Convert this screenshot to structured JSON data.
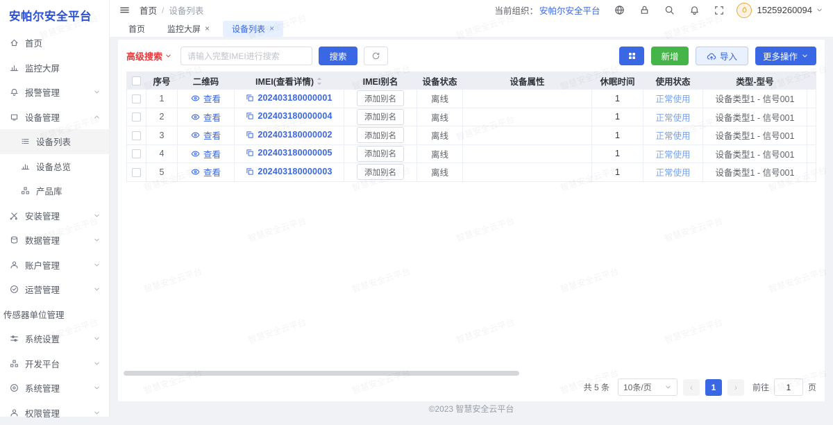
{
  "app": {
    "logo": "安帕尔安全平台",
    "footer": "©2023 智慧安全云平台",
    "watermark": "智慧安全云平台"
  },
  "header": {
    "breadcrumb": {
      "home": "首页",
      "separator": "/",
      "current": "设备列表"
    },
    "org_label": "当前组织：",
    "org_name": "安帕尔安全平台",
    "username": "15259260094"
  },
  "tabs": [
    {
      "name": "home",
      "label": "首页",
      "closable": false,
      "active": false
    },
    {
      "name": "monitor-screen",
      "label": "监控大屏",
      "closable": true,
      "active": false
    },
    {
      "name": "device-list",
      "label": "设备列表",
      "closable": true,
      "active": true
    }
  ],
  "sidebar": {
    "items": [
      {
        "name": "home",
        "label": "首页",
        "icon": "home-icon",
        "sub": false,
        "chevron": null,
        "active": false
      },
      {
        "name": "monitor-screen",
        "label": "监控大屏",
        "icon": "monitor-icon",
        "sub": false,
        "chevron": null,
        "active": false
      },
      {
        "name": "alarm-management",
        "label": "报警管理",
        "icon": "alarm-icon",
        "sub": false,
        "chevron": "down",
        "active": false
      },
      {
        "name": "device-management",
        "label": "设备管理",
        "icon": "device-icon",
        "sub": false,
        "chevron": "up",
        "active": false
      },
      {
        "name": "device-list",
        "label": "设备列表",
        "icon": "list-icon",
        "sub": true,
        "chevron": null,
        "active": true
      },
      {
        "name": "device-overview",
        "label": "设备总览",
        "icon": "overview-icon",
        "sub": true,
        "chevron": null,
        "active": false
      },
      {
        "name": "product-library",
        "label": "产品库",
        "icon": "product-icon",
        "sub": true,
        "chevron": null,
        "active": false
      },
      {
        "name": "install-management",
        "label": "安装管理",
        "icon": "install-icon",
        "sub": false,
        "chevron": "down",
        "active": false
      },
      {
        "name": "data-management",
        "label": "数据管理",
        "icon": "data-icon",
        "sub": false,
        "chevron": "down",
        "active": false
      },
      {
        "name": "account-management",
        "label": "账户管理",
        "icon": "account-icon",
        "sub": false,
        "chevron": "down",
        "active": false
      },
      {
        "name": "operation-management",
        "label": "运营管理",
        "icon": "operation-icon",
        "sub": false,
        "chevron": "down",
        "active": false
      },
      {
        "name": "sensor-unit-management",
        "label": "传感器单位管理",
        "icon": null,
        "sub": false,
        "chevron": null,
        "active": false
      },
      {
        "name": "system-settings",
        "label": "系统设置",
        "icon": "settings-icon",
        "sub": false,
        "chevron": "down",
        "active": false
      },
      {
        "name": "dev-platform",
        "label": "开发平台",
        "icon": "dev-icon",
        "sub": false,
        "chevron": "down",
        "active": false
      },
      {
        "name": "system-management",
        "label": "系统管理",
        "icon": "system-icon",
        "sub": false,
        "chevron": "down",
        "active": false
      },
      {
        "name": "permission-management",
        "label": "权限管理",
        "icon": "permission-icon",
        "sub": false,
        "chevron": "down",
        "active": false
      }
    ]
  },
  "toolbar": {
    "advanced_search": "高级搜索",
    "search_placeholder": "请输入完整IMEI进行搜索",
    "search_button": "搜索",
    "add_button": "新增",
    "import_button": "导入",
    "more_button": "更多操作"
  },
  "table": {
    "columns": [
      "序号",
      "二维码",
      "IMEI(查看详情)",
      "IMEI别名",
      "设备状态",
      "设备属性",
      "休眠时间",
      "使用状态",
      "类型-型号"
    ],
    "view_label": "查看",
    "alias_button": "添加别名",
    "rows": [
      {
        "index": "1",
        "imei": "202403180000001",
        "status": "离线",
        "attr": "",
        "sleep": "1",
        "usage": "正常使用",
        "model": "设备类型1 - 信号001"
      },
      {
        "index": "2",
        "imei": "202403180000004",
        "status": "离线",
        "attr": "",
        "sleep": "1",
        "usage": "正常使用",
        "model": "设备类型1 - 信号001"
      },
      {
        "index": "3",
        "imei": "202403180000002",
        "status": "离线",
        "attr": "",
        "sleep": "1",
        "usage": "正常使用",
        "model": "设备类型1 - 信号001"
      },
      {
        "index": "4",
        "imei": "202403180000005",
        "status": "离线",
        "attr": "",
        "sleep": "1",
        "usage": "正常使用",
        "model": "设备类型1 - 信号001"
      },
      {
        "index": "5",
        "imei": "202403180000003",
        "status": "离线",
        "attr": "",
        "sleep": "1",
        "usage": "正常使用",
        "model": "设备类型1 - 信号001"
      }
    ]
  },
  "pagination": {
    "total": "共 5 条",
    "page_size": "10条/页",
    "current_page": "1",
    "goto_label": "前往",
    "goto_value": "1",
    "page_unit": "页"
  },
  "colors": {
    "primary_blue": "#3a67e4",
    "success_green": "#45b449",
    "danger_red": "#e8393c",
    "logo_blue": "#2b4fdb",
    "usage_blue": "#7ba3f0",
    "offline_gray": "#c0c4cc",
    "avatar_orange": "#f0a43c"
  }
}
